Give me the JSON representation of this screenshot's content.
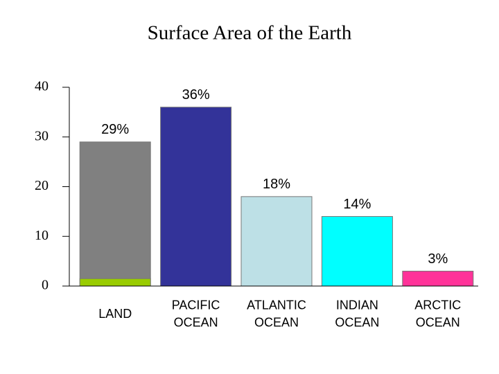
{
  "chart_data": {
    "type": "bar",
    "title": "Surface Area of the Earth",
    "categories": [
      [
        "LAND"
      ],
      [
        "PACIFIC",
        "OCEAN"
      ],
      [
        "ATLANTIC",
        "OCEAN"
      ],
      [
        "INDIAN",
        "OCEAN"
      ],
      [
        "ARCTIC",
        "OCEAN"
      ]
    ],
    "values": [
      29,
      36,
      18,
      14,
      3
    ],
    "value_labels": [
      "29%",
      "36%",
      "18%",
      "14%",
      "3%"
    ],
    "colors": [
      "#808080",
      "#333399",
      "#bde0e6",
      "#00ffff",
      "#ff3399"
    ],
    "overlay": {
      "values": [
        1.5,
        null,
        null,
        null,
        null
      ],
      "color": "#99cc00"
    },
    "ylim": [
      0,
      40
    ],
    "yticks": [
      0,
      10,
      20,
      30,
      40
    ],
    "grid": false
  }
}
